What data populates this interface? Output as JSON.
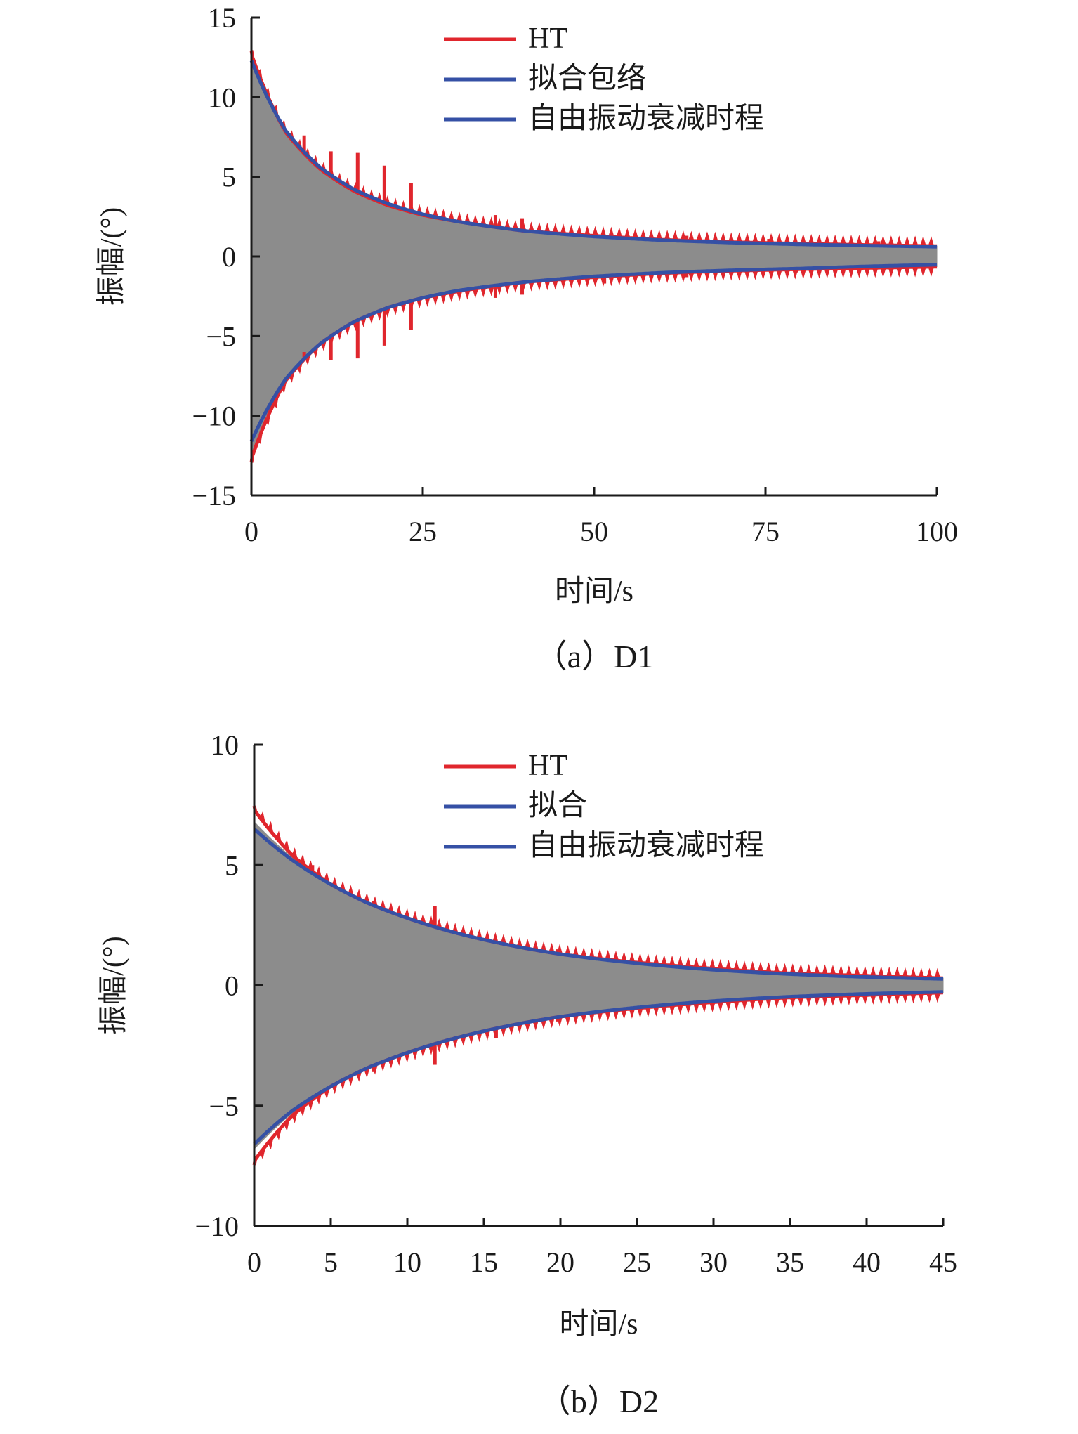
{
  "chart_data": [
    {
      "type": "line",
      "panel_caption": "（a）D1",
      "xlabel": "时间/s",
      "ylabel": "振幅/(°)",
      "xlim": [
        0,
        100
      ],
      "ylim": [
        -15,
        15
      ],
      "xticks": [
        0,
        25,
        50,
        75,
        100
      ],
      "yticks": [
        15,
        10,
        5,
        0,
        -5,
        -10,
        -15
      ],
      "ytick_labels": [
        "15",
        "10",
        "5",
        "0",
        "−5",
        "−10",
        "−15"
      ],
      "legend": {
        "position": "top-right",
        "entries": [
          "HT",
          "拟合包络",
          "自由振动衰减时程"
        ]
      },
      "colors": {
        "ht": "#e0262d",
        "fit": "#3550a5",
        "response": "#8c8c8c"
      },
      "series": [
        {
          "name": "自由振动衰减时程",
          "style": "fill",
          "x": [
            0,
            5,
            10,
            15,
            20,
            25,
            30,
            40,
            50,
            60,
            70,
            80,
            90,
            100
          ],
          "upper": [
            12.6,
            7.9,
            5.5,
            4.1,
            3.2,
            2.6,
            2.2,
            1.6,
            1.3,
            1.05,
            0.9,
            0.8,
            0.72,
            0.65
          ],
          "lower": [
            -12.6,
            -7.9,
            -5.5,
            -4.1,
            -3.2,
            -2.6,
            -2.2,
            -1.6,
            -1.3,
            -1.05,
            -0.9,
            -0.8,
            -0.72,
            -0.65
          ]
        },
        {
          "name": "HT",
          "x": [
            0,
            5,
            10,
            15,
            20,
            25,
            30,
            40,
            50,
            60,
            70,
            80,
            90,
            100
          ],
          "upper": [
            12.7,
            7.8,
            5.5,
            4.1,
            3.2,
            2.6,
            2.2,
            1.6,
            1.3,
            1.05,
            0.9,
            0.8,
            0.72,
            0.65
          ],
          "lower": [
            -12.7,
            -7.8,
            -5.5,
            -4.1,
            -3.2,
            -2.6,
            -2.2,
            -1.6,
            -1.3,
            -1.05,
            -0.9,
            -0.8,
            -0.72,
            -0.65
          ],
          "spikes": [
            {
              "x": 7.7,
              "y": 7.6
            },
            {
              "x": 11.6,
              "y": 6.6
            },
            {
              "x": 15.5,
              "y": 6.5
            },
            {
              "x": 19.4,
              "y": 5.7
            },
            {
              "x": 23.3,
              "y": 4.6
            },
            {
              "x": 35.6,
              "y": 2.6
            },
            {
              "x": 39.5,
              "y": 2.4
            },
            {
              "x": 63.5,
              "y": 1.3
            },
            {
              "x": 75.5,
              "y": 1.1
            },
            {
              "x": 87.5,
              "y": 1.0
            },
            {
              "x": 91.5,
              "y": 0.95
            },
            {
              "x": 7.7,
              "y": -6.0
            },
            {
              "x": 11.6,
              "y": -6.5
            },
            {
              "x": 15.5,
              "y": -6.4
            },
            {
              "x": 19.4,
              "y": -5.6
            },
            {
              "x": 23.3,
              "y": -4.6
            },
            {
              "x": 35.6,
              "y": -2.6
            },
            {
              "x": 39.5,
              "y": -2.4
            },
            {
              "x": 51.5,
              "y": -1.7
            },
            {
              "x": 63.5,
              "y": -1.3
            },
            {
              "x": 79.5,
              "y": -1.0
            }
          ]
        },
        {
          "name": "拟合包络",
          "x": [
            0,
            5,
            10,
            15,
            20,
            25,
            30,
            40,
            50,
            60,
            70,
            80,
            90,
            100
          ],
          "upper": [
            12.3,
            7.9,
            5.6,
            4.2,
            3.3,
            2.65,
            2.2,
            1.6,
            1.25,
            1.02,
            0.87,
            0.76,
            0.68,
            0.61
          ],
          "lower": [
            -11.6,
            -7.7,
            -5.5,
            -4.1,
            -3.2,
            -2.6,
            -2.15,
            -1.6,
            -1.25,
            -1.02,
            -0.87,
            -0.76,
            -0.62,
            -0.52
          ]
        }
      ]
    },
    {
      "type": "line",
      "panel_caption": "（b）D2",
      "xlabel": "时间/s",
      "ylabel": "振幅/(°)",
      "xlim": [
        0,
        45
      ],
      "ylim": [
        -10,
        10
      ],
      "xticks": [
        0,
        5,
        10,
        15,
        20,
        25,
        30,
        35,
        40,
        45
      ],
      "yticks": [
        10,
        5,
        0,
        -5,
        -10
      ],
      "ytick_labels": [
        "10",
        "5",
        "0",
        "−5",
        "−10"
      ],
      "legend": {
        "position": "top-right",
        "entries": [
          "HT",
          "拟合",
          "自由振动衰减时程"
        ]
      },
      "colors": {
        "ht": "#e0262d",
        "fit": "#3550a5",
        "response": "#8c8c8c"
      },
      "series": [
        {
          "name": "自由振动衰减时程",
          "style": "fill",
          "x": [
            0,
            2.5,
            5,
            7.5,
            10,
            12.5,
            15,
            20,
            25,
            30,
            35,
            40,
            45
          ],
          "upper": [
            6.8,
            5.3,
            4.2,
            3.4,
            2.8,
            2.3,
            1.9,
            1.3,
            0.95,
            0.7,
            0.5,
            0.4,
            0.3
          ],
          "lower": [
            -6.8,
            -5.3,
            -4.2,
            -3.4,
            -2.8,
            -2.3,
            -1.9,
            -1.3,
            -0.95,
            -0.7,
            -0.5,
            -0.4,
            -0.3
          ]
        },
        {
          "name": "HT",
          "x": [
            0,
            2.5,
            5,
            7.5,
            10,
            12.5,
            15,
            20,
            25,
            30,
            35,
            40,
            45
          ],
          "upper": [
            7.3,
            5.4,
            4.2,
            3.4,
            2.8,
            2.3,
            1.9,
            1.3,
            0.95,
            0.7,
            0.5,
            0.4,
            0.3
          ],
          "lower": [
            -7.3,
            -5.4,
            -4.2,
            -3.4,
            -2.8,
            -2.3,
            -1.9,
            -1.3,
            -0.95,
            -0.7,
            -0.5,
            -0.4,
            -0.3
          ],
          "spikes": [
            {
              "x": 3.8,
              "y": 5.0
            },
            {
              "x": 7.8,
              "y": 3.5
            },
            {
              "x": 11.8,
              "y": 3.3
            },
            {
              "x": 19.8,
              "y": 1.5
            },
            {
              "x": 3.8,
              "y": -4.8
            },
            {
              "x": 7.8,
              "y": -3.6
            },
            {
              "x": 11.8,
              "y": -3.3
            },
            {
              "x": 15.8,
              "y": -2.2
            },
            {
              "x": 19.8,
              "y": -1.5
            }
          ]
        },
        {
          "name": "拟合",
          "x": [
            0,
            2.5,
            5,
            7.5,
            10,
            12.5,
            15,
            20,
            25,
            30,
            35,
            40,
            45
          ],
          "upper": [
            6.5,
            5.2,
            4.2,
            3.4,
            2.8,
            2.3,
            1.9,
            1.3,
            0.92,
            0.65,
            0.47,
            0.35,
            0.27
          ],
          "lower": [
            -6.6,
            -5.2,
            -4.2,
            -3.4,
            -2.8,
            -2.3,
            -1.9,
            -1.3,
            -0.92,
            -0.65,
            -0.47,
            -0.35,
            -0.27
          ]
        }
      ]
    }
  ]
}
